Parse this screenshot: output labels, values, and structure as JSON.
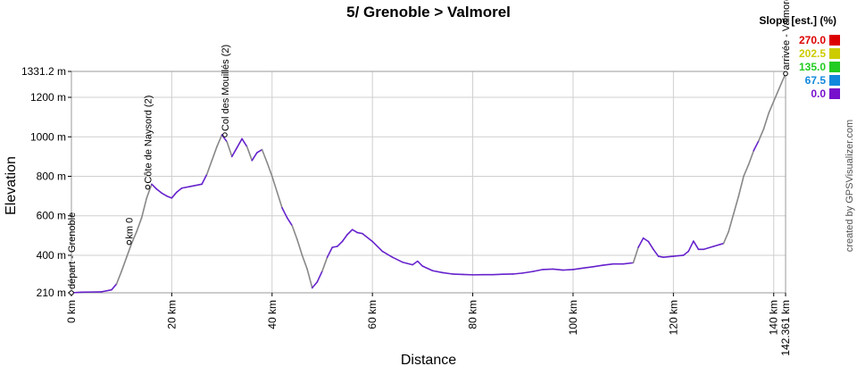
{
  "chart_data": {
    "type": "area",
    "title": "5/ Grenoble > Valmorel",
    "xlabel": "Distance",
    "ylabel": "Elevation",
    "xlim": [
      0,
      142.361
    ],
    "ylim": [
      210,
      1331.2
    ],
    "x_ticks": [
      0,
      20,
      40,
      60,
      80,
      100,
      120,
      140,
      142.361
    ],
    "x_tick_labels": [
      "0 km",
      "20 km",
      "40 km",
      "60 km",
      "80 km",
      "100 km",
      "120 km",
      "140 km",
      "142.361 km"
    ],
    "y_ticks": [
      210,
      400,
      600,
      800,
      1000,
      1200,
      1331.2
    ],
    "y_tick_labels": [
      "210 m",
      "400 m",
      "600 m",
      "800 m",
      "1000 m",
      "1200 m",
      "1331.2 m"
    ],
    "grid": true,
    "series": [
      {
        "x": [
          0,
          2,
          4,
          6,
          8,
          9,
          10,
          11,
          12,
          13,
          14,
          15,
          16,
          17,
          18,
          19,
          20,
          21,
          22,
          24,
          26,
          27,
          28,
          29,
          30,
          31,
          32,
          33,
          34,
          35,
          36,
          37,
          38,
          39,
          40,
          41,
          42,
          43,
          44,
          45,
          46,
          47,
          48,
          49,
          50,
          51,
          52,
          53,
          54,
          55,
          56,
          57,
          58,
          60,
          62,
          64,
          66,
          68,
          69,
          70,
          72,
          74,
          76,
          78,
          80,
          82,
          84,
          86,
          88,
          90,
          92,
          94,
          96,
          98,
          100,
          102,
          104,
          106,
          108,
          110,
          112,
          113,
          114,
          115,
          116,
          117,
          118,
          120,
          122,
          123,
          124,
          125,
          126,
          128,
          130,
          131,
          132,
          133,
          134,
          135,
          136,
          137,
          138,
          139,
          140,
          141,
          142.361
        ],
        "y": [
          210,
          213,
          214,
          215,
          225,
          255,
          320,
          390,
          460,
          520,
          590,
          690,
          760,
          735,
          715,
          700,
          690,
          720,
          740,
          750,
          760,
          810,
          880,
          950,
          1010,
          975,
          900,
          945,
          990,
          950,
          880,
          920,
          935,
          870,
          800,
          720,
          640,
          590,
          550,
          480,
          400,
          330,
          235,
          265,
          320,
          390,
          440,
          445,
          470,
          505,
          530,
          515,
          510,
          470,
          420,
          390,
          365,
          352,
          370,
          345,
          322,
          312,
          305,
          303,
          301,
          302,
          302,
          304,
          305,
          310,
          318,
          328,
          330,
          325,
          328,
          335,
          342,
          350,
          356,
          356,
          362,
          440,
          487,
          470,
          430,
          395,
          390,
          395,
          400,
          420,
          472,
          430,
          430,
          445,
          460,
          520,
          610,
          700,
          800,
          860,
          930,
          980,
          1040,
          1120,
          1180,
          1240,
          1320
        ]
      }
    ],
    "waypoints": [
      {
        "label": "départ - Grenoble",
        "x": 0,
        "y": 210
      },
      {
        "label": "km 0",
        "x": 11.5,
        "y": 465
      },
      {
        "label": "Côte de Naysord (2)",
        "x": 15.2,
        "y": 745
      },
      {
        "label": "Col des Mouillés (2)",
        "x": 30.6,
        "y": 1010
      },
      {
        "label": "arrivée - Valmorel",
        "x": 142.361,
        "y": 1320
      }
    ],
    "legend": {
      "title": "Slope [est.] (%)",
      "position": "top-right",
      "entries": [
        {
          "label": "270.0",
          "color": "#dd0000"
        },
        {
          "label": "202.5",
          "color": "#cccc00"
        },
        {
          "label": "135.0",
          "color": "#22cc22"
        },
        {
          "label": "67.5",
          "color": "#1188dd"
        },
        {
          "label": "0.0",
          "color": "#7711cc"
        }
      ]
    },
    "line_color": "#6622cc",
    "steep_color": "#888888",
    "credit": "created by GPSVisualizer.com"
  }
}
